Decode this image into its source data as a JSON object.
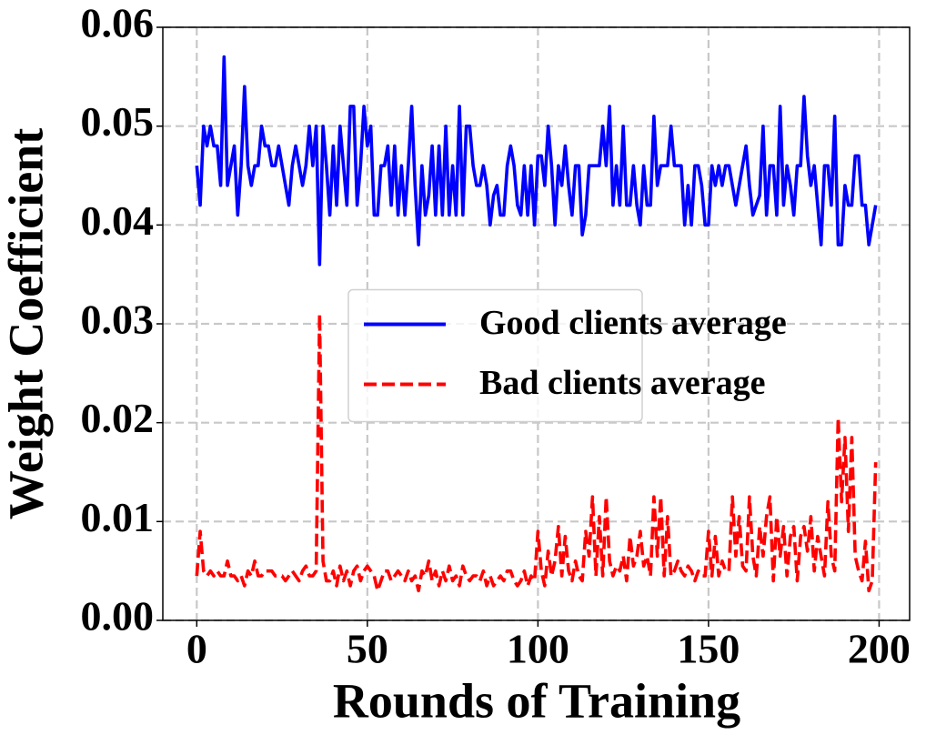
{
  "chart_data": {
    "type": "line",
    "xlabel": "Rounds of Training",
    "ylabel": "Weight Coefficient",
    "x": [
      0,
      1,
      2,
      3,
      4,
      5,
      6,
      7,
      8,
      9,
      10,
      11,
      12,
      13,
      14,
      15,
      16,
      17,
      18,
      19,
      20,
      21,
      22,
      23,
      24,
      25,
      26,
      27,
      28,
      29,
      30,
      31,
      32,
      33,
      34,
      35,
      36,
      37,
      38,
      39,
      40,
      41,
      42,
      43,
      44,
      45,
      46,
      47,
      48,
      49,
      50,
      51,
      52,
      53,
      54,
      55,
      56,
      57,
      58,
      59,
      60,
      61,
      62,
      63,
      64,
      65,
      66,
      67,
      68,
      69,
      70,
      71,
      72,
      73,
      74,
      75,
      76,
      77,
      78,
      79,
      80,
      81,
      82,
      83,
      84,
      85,
      86,
      87,
      88,
      89,
      90,
      91,
      92,
      93,
      94,
      95,
      96,
      97,
      98,
      99,
      100,
      101,
      102,
      103,
      104,
      105,
      106,
      107,
      108,
      109,
      110,
      111,
      112,
      113,
      114,
      115,
      116,
      117,
      118,
      119,
      120,
      121,
      122,
      123,
      124,
      125,
      126,
      127,
      128,
      129,
      130,
      131,
      132,
      133,
      134,
      135,
      136,
      137,
      138,
      139,
      140,
      141,
      142,
      143,
      144,
      145,
      146,
      147,
      148,
      149,
      150,
      151,
      152,
      153,
      154,
      155,
      156,
      157,
      158,
      159,
      160,
      161,
      162,
      163,
      164,
      165,
      166,
      167,
      168,
      169,
      170,
      171,
      172,
      173,
      174,
      175,
      176,
      177,
      178,
      179,
      180,
      181,
      182,
      183,
      184,
      185,
      186,
      187,
      188,
      189,
      190,
      191,
      192,
      193,
      194,
      195,
      196,
      197,
      198,
      199
    ],
    "series": [
      {
        "name": "Good clients average",
        "color": "#0000ff",
        "dash": false,
        "values": [
          0.046,
          0.042,
          0.05,
          0.048,
          0.05,
          0.048,
          0.048,
          0.044,
          0.057,
          0.044,
          0.046,
          0.048,
          0.041,
          0.046,
          0.054,
          0.046,
          0.044,
          0.046,
          0.046,
          0.05,
          0.048,
          0.048,
          0.046,
          0.046,
          0.048,
          0.046,
          0.044,
          0.042,
          0.046,
          0.048,
          0.046,
          0.044,
          0.046,
          0.05,
          0.046,
          0.05,
          0.036,
          0.05,
          0.046,
          0.041,
          0.048,
          0.042,
          0.05,
          0.046,
          0.042,
          0.052,
          0.052,
          0.042,
          0.046,
          0.052,
          0.048,
          0.05,
          0.041,
          0.041,
          0.046,
          0.046,
          0.048,
          0.042,
          0.048,
          0.041,
          0.046,
          0.041,
          0.046,
          0.052,
          0.044,
          0.038,
          0.046,
          0.041,
          0.043,
          0.048,
          0.041,
          0.048,
          0.041,
          0.05,
          0.041,
          0.046,
          0.041,
          0.052,
          0.041,
          0.05,
          0.05,
          0.046,
          0.044,
          0.044,
          0.046,
          0.044,
          0.04,
          0.043,
          0.044,
          0.041,
          0.041,
          0.046,
          0.048,
          0.046,
          0.042,
          0.041,
          0.046,
          0.041,
          0.046,
          0.04,
          0.047,
          0.047,
          0.044,
          0.05,
          0.046,
          0.04,
          0.046,
          0.044,
          0.048,
          0.044,
          0.041,
          0.046,
          0.046,
          0.039,
          0.041,
          0.046,
          0.046,
          0.046,
          0.046,
          0.05,
          0.046,
          0.052,
          0.042,
          0.046,
          0.042,
          0.05,
          0.042,
          0.042,
          0.046,
          0.042,
          0.04,
          0.046,
          0.042,
          0.042,
          0.051,
          0.044,
          0.046,
          0.046,
          0.046,
          0.05,
          0.046,
          0.046,
          0.046,
          0.04,
          0.044,
          0.04,
          0.046,
          0.046,
          0.044,
          0.04,
          0.04,
          0.046,
          0.044,
          0.046,
          0.044,
          0.046,
          0.046,
          0.044,
          0.042,
          0.044,
          0.046,
          0.048,
          0.044,
          0.041,
          0.042,
          0.043,
          0.05,
          0.041,
          0.046,
          0.046,
          0.041,
          0.052,
          0.042,
          0.046,
          0.044,
          0.041,
          0.046,
          0.046,
          0.053,
          0.047,
          0.044,
          0.046,
          0.042,
          0.038,
          0.046,
          0.046,
          0.042,
          0.051,
          0.038,
          0.038,
          0.044,
          0.042,
          0.042,
          0.047,
          0.047,
          0.042,
          0.042,
          0.038,
          0.04,
          0.042
        ]
      },
      {
        "name": "Bad clients average",
        "color": "#ff0000",
        "dash": true,
        "values": [
          0.0045,
          0.009,
          0.005,
          0.0045,
          0.005,
          0.0045,
          0.005,
          0.0045,
          0.0045,
          0.006,
          0.0045,
          0.0045,
          0.004,
          0.0045,
          0.0035,
          0.005,
          0.0045,
          0.006,
          0.0045,
          0.0045,
          0.005,
          0.005,
          0.005,
          0.0045,
          0.0045,
          0.0045,
          0.004,
          0.0045,
          0.005,
          0.0045,
          0.004,
          0.005,
          0.0055,
          0.0045,
          0.0045,
          0.005,
          0.031,
          0.006,
          0.004,
          0.004,
          0.005,
          0.0035,
          0.0055,
          0.004,
          0.005,
          0.0035,
          0.005,
          0.0055,
          0.004,
          0.005,
          0.0055,
          0.005,
          0.0045,
          0.003,
          0.004,
          0.005,
          0.005,
          0.004,
          0.0045,
          0.005,
          0.0045,
          0.004,
          0.005,
          0.004,
          0.0045,
          0.003,
          0.005,
          0.0045,
          0.006,
          0.004,
          0.005,
          0.0035,
          0.005,
          0.004,
          0.0055,
          0.004,
          0.0045,
          0.0035,
          0.0055,
          0.0045,
          0.004,
          0.0045,
          0.0045,
          0.004,
          0.005,
          0.0035,
          0.0045,
          0.0035,
          0.004,
          0.0045,
          0.004,
          0.005,
          0.005,
          0.004,
          0.0035,
          0.004,
          0.005,
          0.0035,
          0.0045,
          0.004,
          0.009,
          0.005,
          0.0035,
          0.007,
          0.0045,
          0.006,
          0.0095,
          0.0045,
          0.0085,
          0.005,
          0.004,
          0.006,
          0.0045,
          0.004,
          0.009,
          0.0065,
          0.0125,
          0.0045,
          0.0105,
          0.0045,
          0.0125,
          0.006,
          0.0045,
          0.0055,
          0.005,
          0.0065,
          0.004,
          0.0085,
          0.0055,
          0.0065,
          0.009,
          0.0055,
          0.0065,
          0.0045,
          0.0125,
          0.0065,
          0.0125,
          0.0045,
          0.0105,
          0.0045,
          0.005,
          0.006,
          0.005,
          0.0045,
          0.0055,
          0.005,
          0.004,
          0.005,
          0.0045,
          0.0045,
          0.009,
          0.0045,
          0.0085,
          0.0045,
          0.006,
          0.005,
          0.005,
          0.0125,
          0.0065,
          0.0105,
          0.0055,
          0.005,
          0.0125,
          0.0065,
          0.0045,
          0.0095,
          0.0065,
          0.0105,
          0.0125,
          0.004,
          0.0105,
          0.0065,
          0.0095,
          0.0045,
          0.0085,
          0.0095,
          0.004,
          0.0085,
          0.0095,
          0.007,
          0.0105,
          0.005,
          0.0085,
          0.0065,
          0.0045,
          0.012,
          0.0065,
          0.005,
          0.0205,
          0.012,
          0.0185,
          0.009,
          0.0185,
          0.0065,
          0.005,
          0.004,
          0.008,
          0.003,
          0.004,
          0.016
        ]
      }
    ],
    "xlim": [
      -9.95,
      208.95
    ],
    "xticks": [
      0,
      50,
      100,
      150,
      200
    ],
    "ylim": [
      0,
      0.06
    ],
    "yticks": [
      {
        "value": 0,
        "label": "0.00"
      },
      0.01,
      0.02,
      0.03,
      0.04,
      0.05,
      0.06
    ],
    "grid": true,
    "legend": "center"
  }
}
